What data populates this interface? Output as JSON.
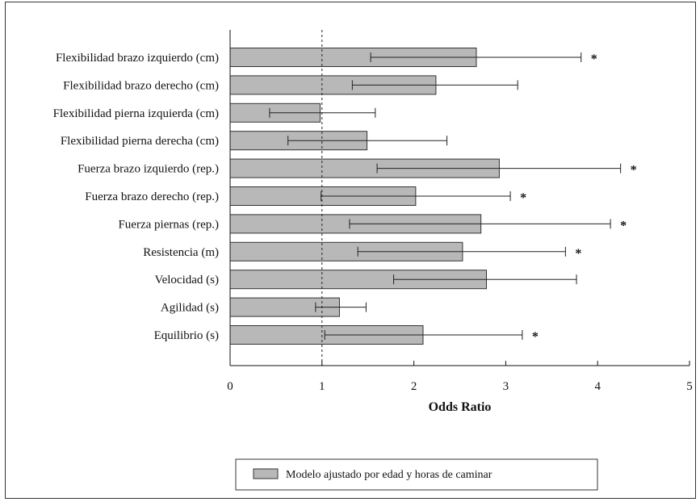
{
  "chart_data": {
    "type": "bar",
    "orientation": "horizontal",
    "xlabel": "Odds Ratio",
    "xlim": [
      0,
      5
    ],
    "xticks": [
      "0",
      "1",
      "2",
      "3",
      "4",
      "5"
    ],
    "reference_line": 1,
    "grid": false,
    "legend_position": "bottom-center",
    "bar_color": "#b8b8b8",
    "categories": [
      "Flexibilidad brazo izquierdo (cm)",
      "Flexibilidad brazo derecho (cm)",
      "Flexibilidad pierna izquierda (cm)",
      "Flexibilidad pierna derecha (cm)",
      "Fuerza brazo izquierdo (rep.)",
      "Fuerza brazo derecho (rep.)",
      "Fuerza piernas (rep.)",
      "Resistencia (m)",
      "Velocidad (s)",
      "Agilidad (s)",
      "Equilibrio (s)"
    ],
    "series": [
      {
        "name": "Modelo ajustado por edad y horas de caminar",
        "values": [
          2.68,
          2.24,
          0.98,
          1.49,
          2.93,
          2.02,
          2.73,
          2.53,
          2.79,
          1.19,
          2.1
        ],
        "ci_low": [
          1.53,
          1.33,
          0.43,
          0.63,
          1.6,
          0.99,
          1.3,
          1.39,
          1.78,
          0.93,
          1.03
        ],
        "ci_high": [
          3.82,
          3.13,
          1.58,
          2.36,
          4.25,
          3.05,
          4.14,
          3.65,
          3.77,
          1.48,
          3.18
        ]
      }
    ],
    "significance": [
      "*",
      "",
      "",
      "",
      "*",
      "*",
      "*",
      "*",
      "",
      "",
      "*"
    ]
  },
  "legend": {
    "label": "Modelo ajustado por edad y horas de caminar"
  }
}
